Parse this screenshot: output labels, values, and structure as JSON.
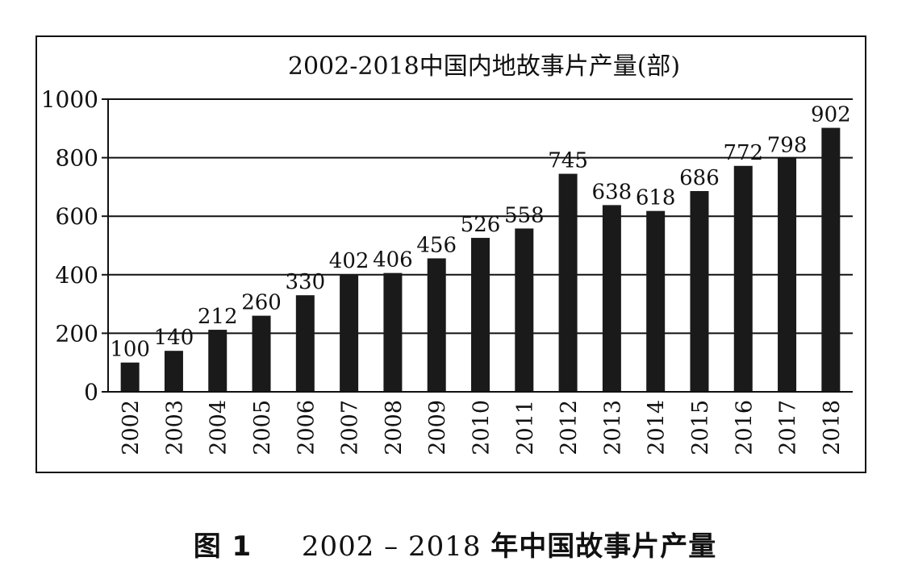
{
  "chart_data": {
    "type": "bar",
    "title": "2002-2018中国内地故事片产量(部)",
    "categories": [
      "2002",
      "2003",
      "2004",
      "2005",
      "2006",
      "2007",
      "2008",
      "2009",
      "2010",
      "2011",
      "2012",
      "2013",
      "2014",
      "2015",
      "2016",
      "2017",
      "2018"
    ],
    "values": [
      100,
      140,
      212,
      260,
      330,
      402,
      406,
      456,
      526,
      558,
      745,
      638,
      618,
      686,
      772,
      798,
      902
    ],
    "ylim": [
      0,
      1000
    ],
    "yticks": [
      0,
      200,
      400,
      600,
      800,
      1000
    ],
    "grid": true,
    "bar_color": "#1a1a1a"
  },
  "caption": {
    "label": "图 1",
    "years": "2002 – 2018",
    "title": "年中国故事片产量"
  }
}
